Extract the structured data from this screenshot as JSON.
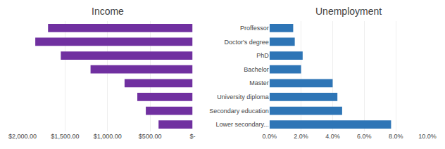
{
  "chart_data": [
    {
      "type": "bar",
      "orientation": "horizontal",
      "title": "Income",
      "categories": [
        "Proffessor",
        "Doctor's degree",
        "PhD",
        "Bachelor",
        "Master",
        "University diploma",
        "Secondary education",
        "Lower secondary..."
      ],
      "values": [
        1700,
        1850,
        1550,
        1200,
        800,
        650,
        550,
        400
      ],
      "color": "#7030A0",
      "xlim": [
        2000,
        0
      ],
      "xticks": [
        {
          "value": 2000,
          "label": "$2,000.00"
        },
        {
          "value": 1500,
          "label": "$1,500.00"
        },
        {
          "value": 1000,
          "label": "$1,000.00"
        },
        {
          "value": 500,
          "label": "$500.00"
        },
        {
          "value": 0,
          "label": "$-"
        }
      ],
      "grid": true,
      "tick_labels": "x"
    },
    {
      "type": "bar",
      "orientation": "horizontal",
      "title": "Unemployment",
      "categories": [
        "Proffessor",
        "Doctor's degree",
        "PhD",
        "Bachelor",
        "Master",
        "University diploma",
        "Secondary education",
        "Lower secondary..."
      ],
      "values": [
        1.5,
        1.6,
        2.1,
        2.0,
        4.0,
        4.3,
        4.6,
        7.7
      ],
      "color": "#2E75B6",
      "xlim": [
        0,
        10
      ],
      "xticks": [
        {
          "value": 0,
          "label": "0.0%"
        },
        {
          "value": 2,
          "label": "2.0%"
        },
        {
          "value": 4,
          "label": "4.0%"
        },
        {
          "value": 6,
          "label": "6.0%"
        },
        {
          "value": 8,
          "label": "8.0%"
        },
        {
          "value": 10,
          "label": "10.0%"
        }
      ],
      "grid": true
    }
  ]
}
